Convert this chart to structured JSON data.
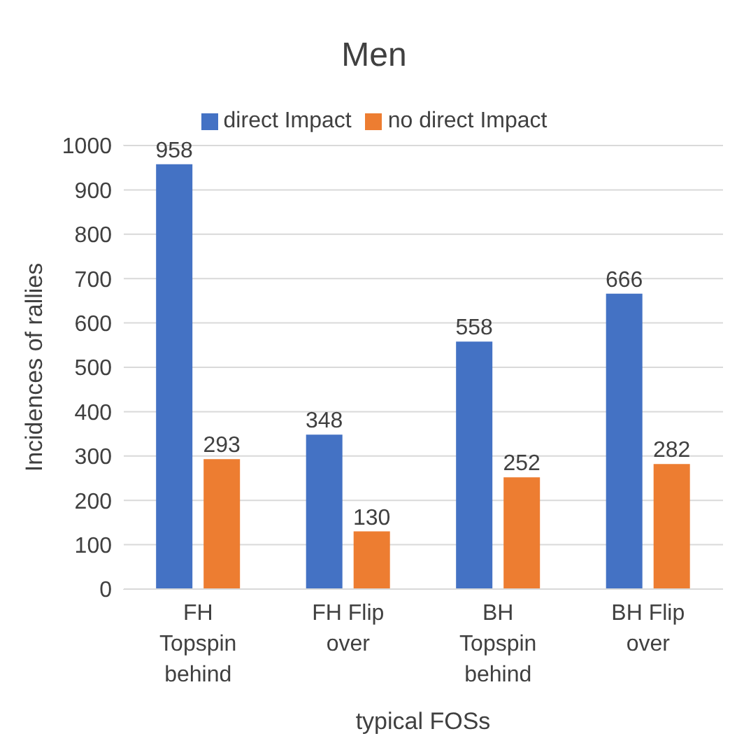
{
  "chart_data": {
    "type": "bar",
    "title": "Men",
    "xlabel": "typical FOSs",
    "ylabel": "Incidences of rallies",
    "categories": [
      "FH Topspin behind",
      "FH Flip over",
      "BH Topspin behind",
      "BH Flip over"
    ],
    "series": [
      {
        "name": "direct Impact",
        "color": "#4472c4",
        "values": [
          958,
          348,
          558,
          666
        ]
      },
      {
        "name": "no direct Impact",
        "color": "#ed7d31",
        "values": [
          293,
          130,
          252,
          282
        ]
      }
    ],
    "ylim": [
      0,
      1000
    ],
    "yticks": [
      0,
      100,
      200,
      300,
      400,
      500,
      600,
      700,
      800,
      900,
      1000
    ],
    "grid": "y",
    "legend": "top",
    "data_labels": true
  }
}
